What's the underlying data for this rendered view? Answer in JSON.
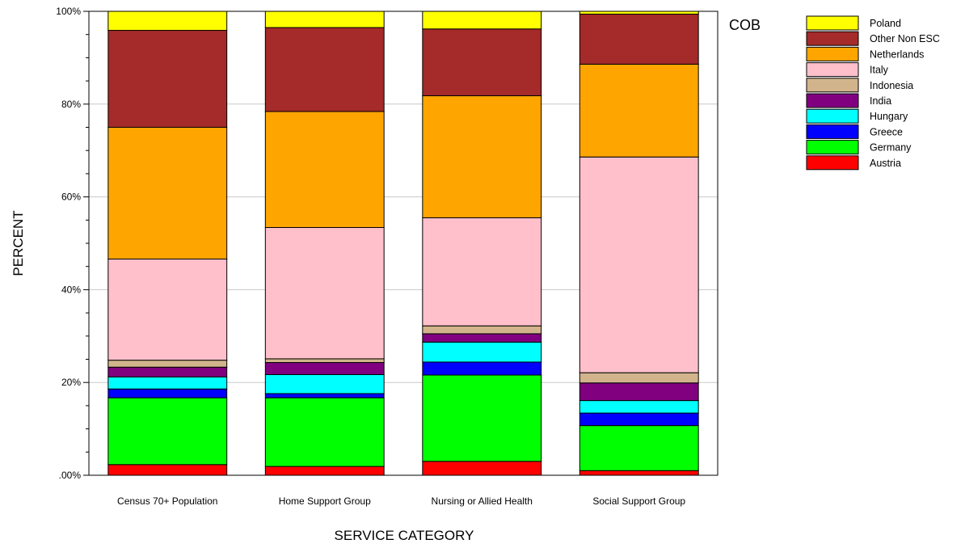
{
  "chart_data": {
    "type": "bar",
    "stacked": true,
    "xlabel": "SERVICE CATEGORY",
    "ylabel": "PERCENT",
    "ylim": [
      0,
      100
    ],
    "yticks": [
      ".00%",
      "20%",
      "40%",
      "60%",
      "80%",
      "100%"
    ],
    "grid": true,
    "legend_position": "right",
    "legend_title": "COB",
    "categories": [
      "Census 70+ Population",
      "Home Support Group",
      "Nursing or Allied Health",
      "Social Support Group"
    ],
    "series": [
      {
        "name": "Austria",
        "color": "#ff0000",
        "values": [
          2.3,
          1.9,
          3.0,
          1.0
        ]
      },
      {
        "name": "Germany",
        "color": "#00ff00",
        "values": [
          14.4,
          14.8,
          18.6,
          9.7
        ]
      },
      {
        "name": "Greece",
        "color": "#0000ff",
        "values": [
          1.9,
          0.9,
          2.8,
          2.7
        ]
      },
      {
        "name": "Hungary",
        "color": "#00ffff",
        "values": [
          2.6,
          4.1,
          4.3,
          2.7
        ]
      },
      {
        "name": "India",
        "color": "#800080",
        "values": [
          2.1,
          2.6,
          1.8,
          3.8
        ]
      },
      {
        "name": "Indonesia",
        "color": "#d2b48c",
        "values": [
          1.5,
          0.8,
          1.7,
          2.2
        ]
      },
      {
        "name": "Italy",
        "color": "#ffc0cb",
        "values": [
          21.8,
          28.3,
          23.3,
          46.5
        ]
      },
      {
        "name": "Netherlands",
        "color": "#ffa500",
        "values": [
          28.4,
          25.0,
          26.3,
          20.0
        ]
      },
      {
        "name": "Other Non ESC",
        "color": "#a52a2a",
        "values": [
          20.9,
          18.1,
          14.4,
          10.8
        ]
      },
      {
        "name": "Poland",
        "color": "#ffff00",
        "values": [
          4.1,
          3.5,
          3.8,
          0.6
        ]
      }
    ]
  }
}
